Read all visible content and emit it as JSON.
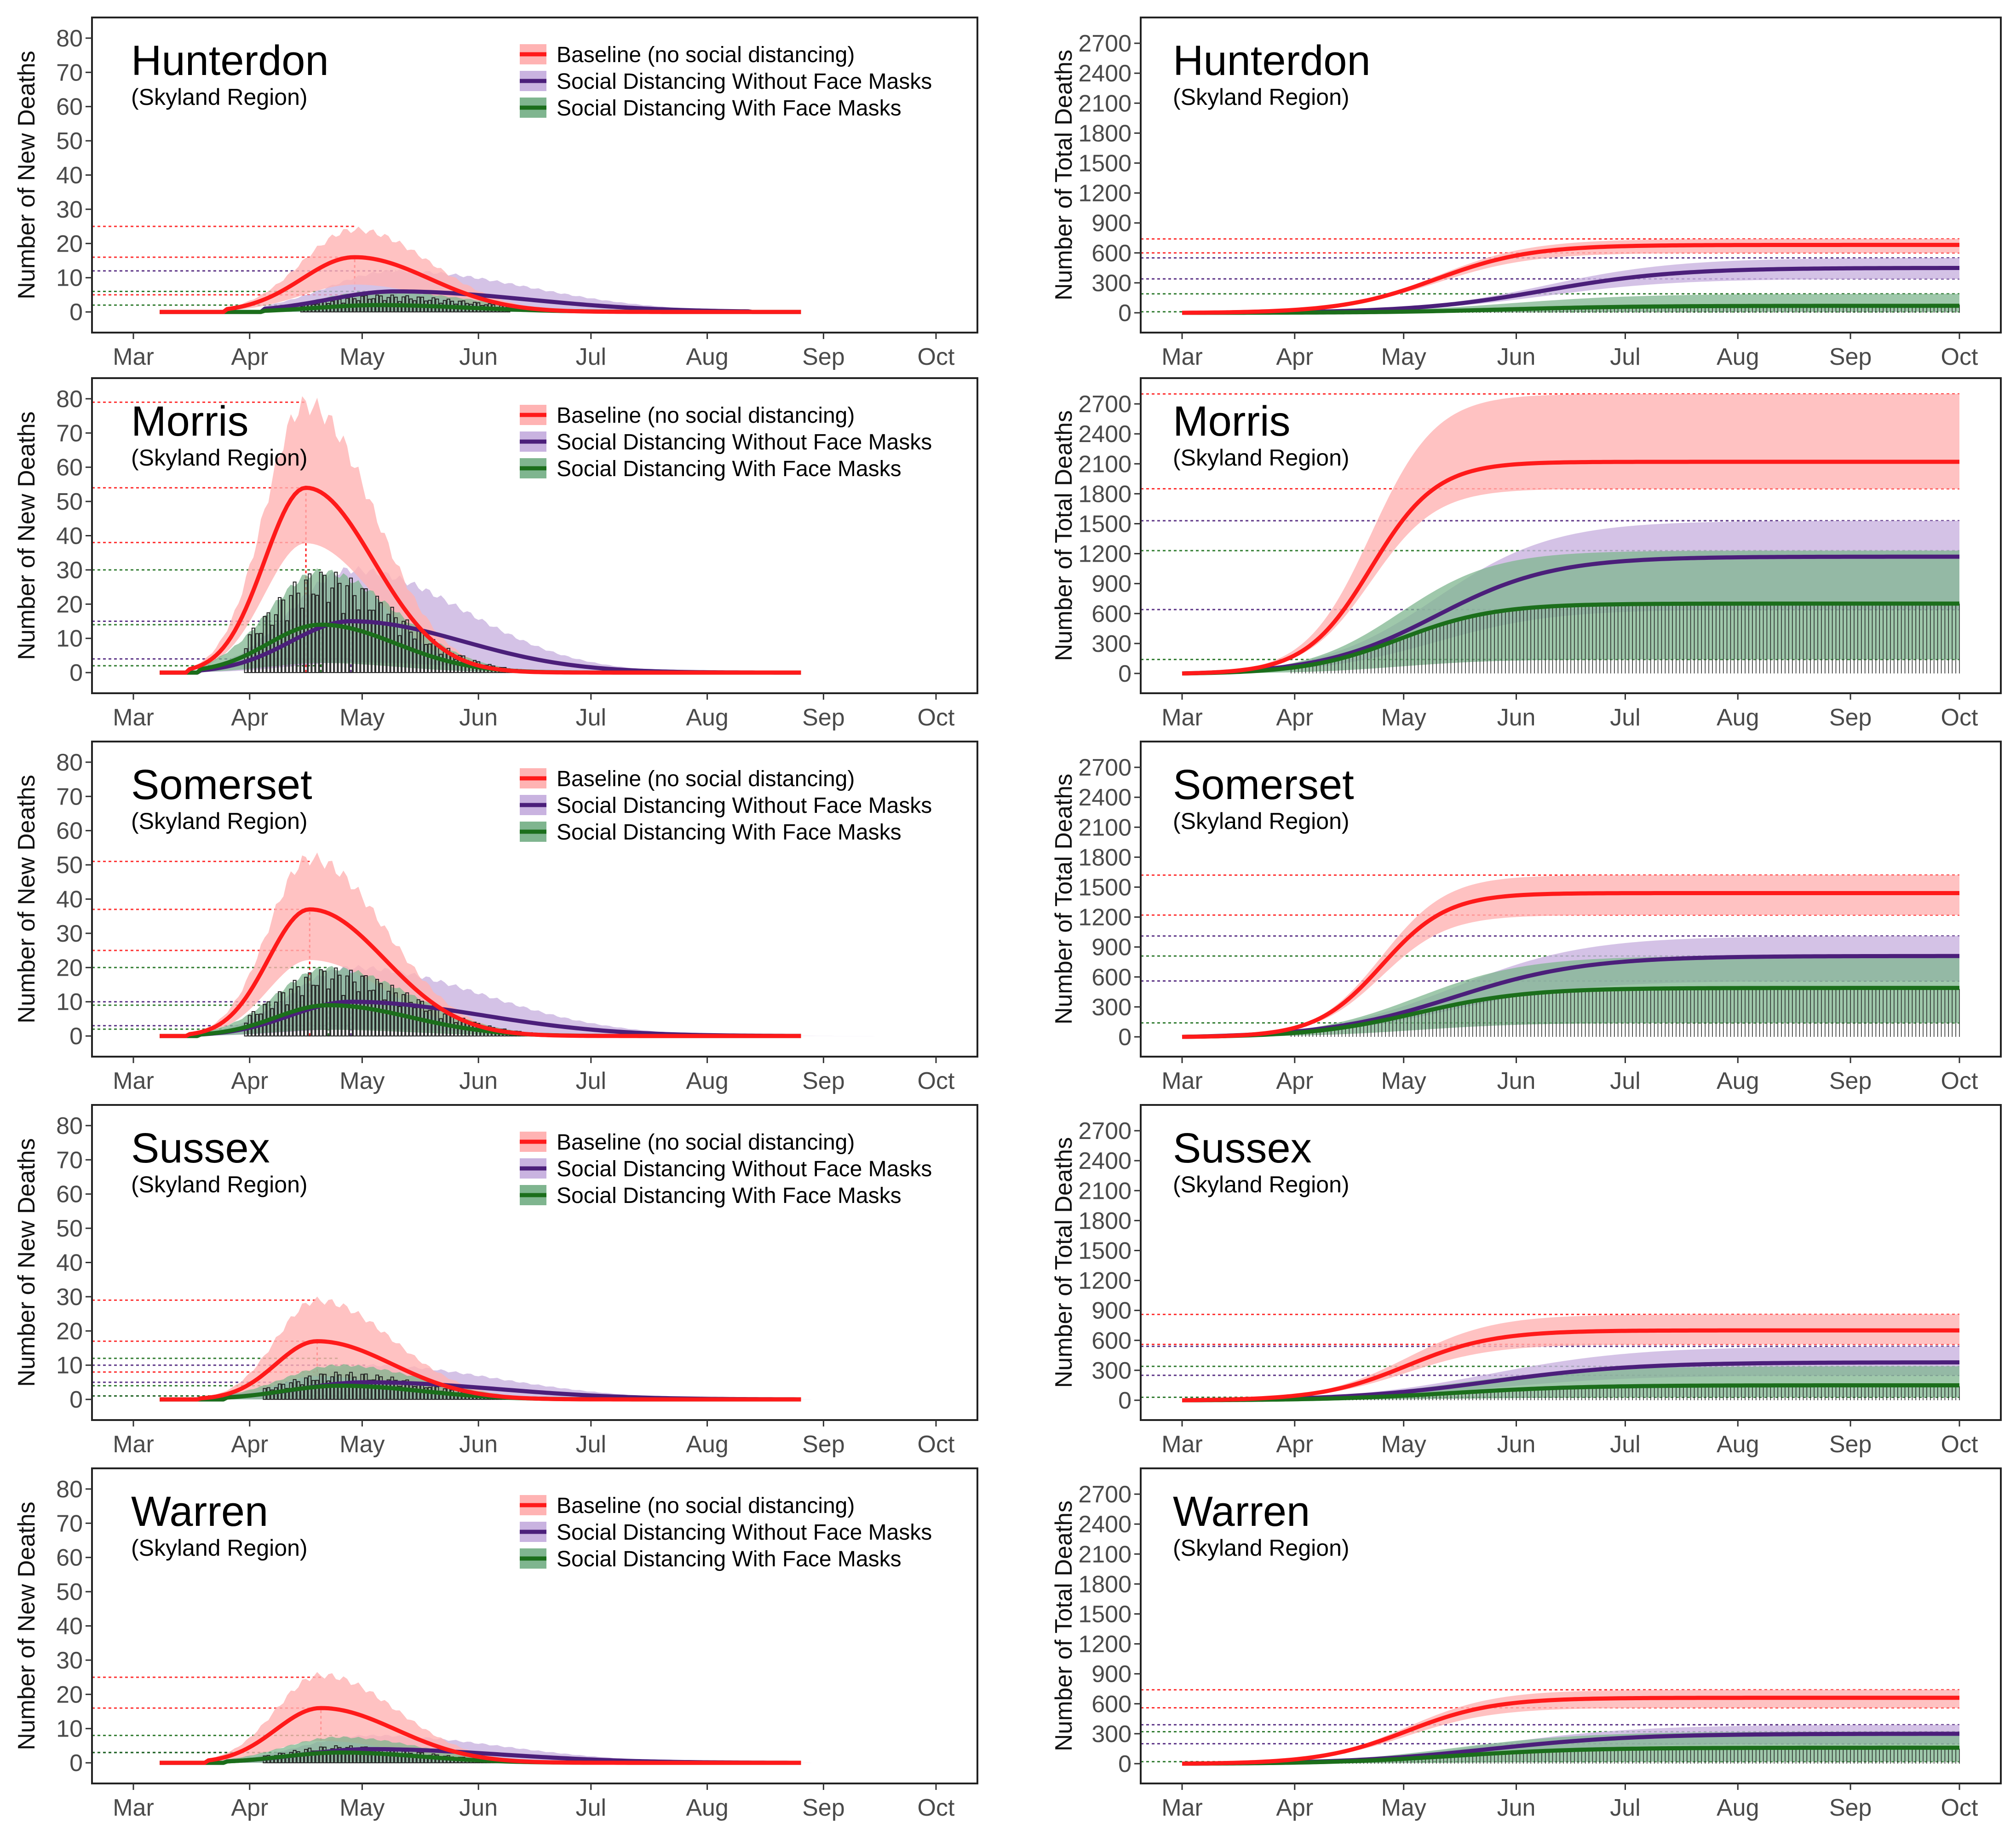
{
  "colors": {
    "baseline": "#ff1a1a",
    "baseline_band": "#ffb3b3",
    "no_masks": "#4b1f7a",
    "no_masks_band": "#c9b3e0",
    "masks": "#1b6e1b",
    "masks_band": "#7fb58f",
    "observed": "#222222"
  },
  "legend": {
    "baseline": "Baseline (no social distancing)",
    "no_masks": "Social Distancing Without Face Masks",
    "masks": "Social Distancing With Face Masks"
  },
  "region_label": "(Skyland Region)",
  "chart_data": [
    {
      "id": "hunterdon-new",
      "type": "line",
      "county": "Hunterdon",
      "title": "Hunterdon",
      "subtitle": "(Skyland Region)",
      "xlabel": "",
      "ylabel": "Number of New Deaths",
      "xlim": [
        0,
        214
      ],
      "ylim": [
        -2,
        82
      ],
      "yticks": [
        0,
        10,
        20,
        30,
        40,
        50,
        60,
        70,
        80
      ],
      "xticks": [
        "Mar",
        "Apr",
        "May",
        "Jun",
        "Jul",
        "Aug",
        "Sep",
        "Oct"
      ],
      "xtick_days": [
        0,
        31,
        61,
        92,
        122,
        153,
        184,
        214
      ],
      "legend": true,
      "series": [
        {
          "name": "Baseline (no social distancing)",
          "key": "baseline",
          "peak": 16,
          "peak_day": 59,
          "width_up": 14,
          "width_down": 20,
          "start": 25,
          "end": 150,
          "upper_mult": 1.5,
          "lower_mult": 0.5,
          "hline": [
            25,
            16,
            5
          ]
        },
        {
          "name": "Social Distancing Without Face Masks",
          "key": "no_masks",
          "peak": 6,
          "peak_day": 70,
          "width_up": 18,
          "width_down": 35,
          "start": 35,
          "end": 164,
          "upper_mult": 2.0,
          "lower_mult": 0.0,
          "hline": [
            12
          ]
        },
        {
          "name": "Social Distancing With Face Masks",
          "key": "masks",
          "peak": 2,
          "peak_day": 65,
          "width_up": 16,
          "width_down": 25,
          "start": 35,
          "end": 140,
          "upper_mult": 3.0,
          "lower_mult": 0.0,
          "hline": [
            6,
            2
          ]
        }
      ],
      "observed": {
        "max": 5,
        "start": 45,
        "end": 100
      }
    },
    {
      "id": "hunterdon-total",
      "type": "line",
      "county": "Hunterdon",
      "title": "Hunterdon",
      "subtitle": "(Skyland Region)",
      "xlabel": "",
      "ylabel": "Number of Total Deaths",
      "xlim": [
        0,
        214
      ],
      "ylim": [
        -60,
        2820
      ],
      "yticks": [
        0,
        300,
        600,
        900,
        1200,
        1500,
        1800,
        2100,
        2400,
        2700
      ],
      "xticks": [
        "Mar",
        "Apr",
        "May",
        "Jun",
        "Jul",
        "Aug",
        "Sep",
        "Oct"
      ],
      "xtick_days": [
        0,
        31,
        61,
        92,
        122,
        153,
        184,
        214
      ],
      "legend": false,
      "series": [
        {
          "name": "Baseline (no social distancing)",
          "key": "baseline",
          "final": 680,
          "mid": 70,
          "rate": 13,
          "upper": 740,
          "lower": 600,
          "hline": [
            740,
            600
          ]
        },
        {
          "name": "Social Distancing Without Face Masks",
          "key": "no_masks",
          "final": 450,
          "mid": 100,
          "rate": 18,
          "upper": 550,
          "lower": 340,
          "hline": [
            550,
            340
          ]
        },
        {
          "name": "Social Distancing With Face Masks",
          "key": "masks",
          "final": 70,
          "mid": 90,
          "rate": 18,
          "upper": 190,
          "lower": 10,
          "hline": [
            190,
            10
          ]
        }
      ],
      "observed": {
        "max": 80,
        "start": 45,
        "end": 214
      }
    },
    {
      "id": "morris-new",
      "type": "line",
      "county": "Morris",
      "title": "Morris",
      "subtitle": "(Skyland Region)",
      "xlabel": "",
      "ylabel": "Number of New Deaths",
      "xlim": [
        0,
        214
      ],
      "ylim": [
        -2,
        82
      ],
      "yticks": [
        0,
        10,
        20,
        30,
        40,
        50,
        60,
        70,
        80
      ],
      "xticks": [
        "Mar",
        "Apr",
        "May",
        "Jun",
        "Jul",
        "Aug",
        "Sep",
        "Oct"
      ],
      "xtick_days": [
        0,
        31,
        61,
        92,
        122,
        153,
        184,
        214
      ],
      "legend": true,
      "series": [
        {
          "name": "Baseline (no social distancing)",
          "key": "baseline",
          "peak": 54,
          "peak_day": 46,
          "width_up": 11,
          "width_down": 18,
          "start": 15,
          "end": 130,
          "upper_mult": 1.45,
          "lower_mult": 0.7,
          "hline": [
            79,
            54,
            38
          ]
        },
        {
          "name": "Social Distancing Without Face Masks",
          "key": "no_masks",
          "peak": 15,
          "peak_day": 58,
          "width_up": 16,
          "width_down": 30,
          "start": 18,
          "end": 170,
          "upper_mult": 2.0,
          "lower_mult": 0.2,
          "hline": [
            15,
            4
          ]
        },
        {
          "name": "Social Distancing With Face Masks",
          "key": "masks",
          "peak": 14,
          "peak_day": 50,
          "width_up": 14,
          "width_down": 20,
          "start": 18,
          "end": 130,
          "upper_mult": 2.1,
          "lower_mult": 0.2,
          "hline": [
            30,
            14,
            2
          ]
        }
      ],
      "observed": {
        "max": 30,
        "start": 30,
        "end": 140
      }
    },
    {
      "id": "morris-total",
      "type": "line",
      "county": "Morris",
      "title": "Morris",
      "subtitle": "(Skyland Region)",
      "xlabel": "",
      "ylabel": "Number of Total Deaths",
      "xlim": [
        0,
        214
      ],
      "ylim": [
        -60,
        2820
      ],
      "yticks": [
        0,
        300,
        600,
        900,
        1200,
        1500,
        1800,
        2100,
        2400,
        2700
      ],
      "xticks": [
        "Mar",
        "Apr",
        "May",
        "Jun",
        "Jul",
        "Aug",
        "Sep",
        "Oct"
      ],
      "xtick_days": [
        0,
        31,
        61,
        92,
        122,
        153,
        184,
        214
      ],
      "legend": false,
      "series": [
        {
          "name": "Baseline (no social distancing)",
          "key": "baseline",
          "final": 2120,
          "mid": 52,
          "rate": 9,
          "upper": 2800,
          "lower": 1850,
          "hline": [
            2800,
            1850
          ]
        },
        {
          "name": "Social Distancing Without Face Masks",
          "key": "no_masks",
          "final": 1170,
          "mid": 70,
          "rate": 16,
          "upper": 1530,
          "lower": 640,
          "hline": [
            1530,
            640
          ]
        },
        {
          "name": "Social Distancing With Face Masks",
          "key": "masks",
          "final": 700,
          "mid": 60,
          "rate": 13,
          "upper": 1230,
          "lower": 140,
          "hline": [
            1230,
            140
          ]
        }
      ],
      "observed": {
        "max": 700,
        "start": 30,
        "end": 214
      }
    },
    {
      "id": "somerset-new",
      "type": "line",
      "county": "Somerset",
      "title": "Somerset",
      "subtitle": "(Skyland Region)",
      "xlabel": "",
      "ylabel": "Number of New Deaths",
      "xlim": [
        0,
        214
      ],
      "ylim": [
        -2,
        82
      ],
      "yticks": [
        0,
        10,
        20,
        30,
        40,
        50,
        60,
        70,
        80
      ],
      "xticks": [
        "Mar",
        "Apr",
        "May",
        "Jun",
        "Jul",
        "Aug",
        "Sep",
        "Oct"
      ],
      "xtick_days": [
        0,
        31,
        61,
        92,
        122,
        153,
        184,
        214
      ],
      "legend": true,
      "series": [
        {
          "name": "Baseline (no social distancing)",
          "key": "baseline",
          "peak": 37,
          "peak_day": 47,
          "width_up": 11,
          "width_down": 20,
          "start": 15,
          "end": 140,
          "upper_mult": 1.4,
          "lower_mult": 0.6,
          "hline": [
            51,
            37,
            25
          ]
        },
        {
          "name": "Social Distancing Without Face Masks",
          "key": "no_masks",
          "peak": 10,
          "peak_day": 58,
          "width_up": 16,
          "width_down": 35,
          "start": 18,
          "end": 200,
          "upper_mult": 2.0,
          "lower_mult": 0.2,
          "hline": [
            10,
            3
          ]
        },
        {
          "name": "Social Distancing With Face Masks",
          "key": "masks",
          "peak": 9,
          "peak_day": 52,
          "width_up": 14,
          "width_down": 22,
          "start": 18,
          "end": 140,
          "upper_mult": 2.2,
          "lower_mult": 0.2,
          "hline": [
            20,
            9,
            2
          ]
        }
      ],
      "observed": {
        "max": 20,
        "start": 30,
        "end": 205
      }
    },
    {
      "id": "somerset-total",
      "type": "line",
      "county": "Somerset",
      "title": "Somerset",
      "subtitle": "(Skyland Region)",
      "xlabel": "",
      "ylabel": "Number of Total Deaths",
      "xlim": [
        0,
        214
      ],
      "ylim": [
        -60,
        2820
      ],
      "yticks": [
        0,
        300,
        600,
        900,
        1200,
        1500,
        1800,
        2100,
        2400,
        2700
      ],
      "xticks": [
        "Mar",
        "Apr",
        "May",
        "Jun",
        "Jul",
        "Aug",
        "Sep",
        "Oct"
      ],
      "xtick_days": [
        0,
        31,
        61,
        92,
        122,
        153,
        184,
        214
      ],
      "legend": false,
      "series": [
        {
          "name": "Baseline (no social distancing)",
          "key": "baseline",
          "final": 1440,
          "mid": 55,
          "rate": 9,
          "upper": 1620,
          "lower": 1220,
          "hline": [
            1620,
            1220
          ]
        },
        {
          "name": "Social Distancing Without Face Masks",
          "key": "no_masks",
          "final": 810,
          "mid": 75,
          "rate": 18,
          "upper": 1010,
          "lower": 560,
          "hline": [
            1010,
            560
          ]
        },
        {
          "name": "Social Distancing With Face Masks",
          "key": "masks",
          "final": 490,
          "mid": 65,
          "rate": 15,
          "upper": 810,
          "lower": 140,
          "hline": [
            810,
            140
          ]
        }
      ],
      "observed": {
        "max": 480,
        "start": 30,
        "end": 214
      }
    },
    {
      "id": "sussex-new",
      "type": "line",
      "county": "Sussex",
      "title": "Sussex",
      "subtitle": "(Skyland Region)",
      "xlabel": "",
      "ylabel": "Number of New Deaths",
      "xlim": [
        0,
        214
      ],
      "ylim": [
        -2,
        82
      ],
      "yticks": [
        0,
        10,
        20,
        30,
        40,
        50,
        60,
        70,
        80
      ],
      "xticks": [
        "Mar",
        "Apr",
        "May",
        "Jun",
        "Jul",
        "Aug",
        "Sep",
        "Oct"
      ],
      "xtick_days": [
        0,
        31,
        61,
        92,
        122,
        153,
        184,
        214
      ],
      "legend": true,
      "series": [
        {
          "name": "Baseline (no social distancing)",
          "key": "baseline",
          "peak": 17,
          "peak_day": 49,
          "width_up": 11,
          "width_down": 20,
          "start": 18,
          "end": 140,
          "upper_mult": 1.7,
          "lower_mult": 0.4,
          "hline": [
            29,
            17,
            8
          ]
        },
        {
          "name": "Social Distancing Without Face Masks",
          "key": "no_masks",
          "peak": 5,
          "peak_day": 62,
          "width_up": 18,
          "width_down": 35,
          "start": 25,
          "end": 180,
          "upper_mult": 2.0,
          "lower_mult": 0.0,
          "hline": [
            10,
            5,
            1
          ]
        },
        {
          "name": "Social Distancing With Face Masks",
          "key": "masks",
          "peak": 4,
          "peak_day": 55,
          "width_up": 15,
          "width_down": 22,
          "start": 25,
          "end": 140,
          "upper_mult": 2.5,
          "lower_mult": 0.0,
          "hline": [
            12,
            4,
            1
          ]
        }
      ],
      "observed": {
        "max": 8,
        "start": 35,
        "end": 110
      }
    },
    {
      "id": "sussex-total",
      "type": "line",
      "county": "Sussex",
      "title": "Sussex",
      "subtitle": "(Skyland Region)",
      "xlabel": "",
      "ylabel": "Number of Total Deaths",
      "xlim": [
        0,
        214
      ],
      "ylim": [
        -60,
        2820
      ],
      "yticks": [
        0,
        300,
        600,
        900,
        1200,
        1500,
        1800,
        2100,
        2400,
        2700
      ],
      "xticks": [
        "Mar",
        "Apr",
        "May",
        "Jun",
        "Jul",
        "Aug",
        "Sep",
        "Oct"
      ],
      "xtick_days": [
        0,
        31,
        61,
        92,
        122,
        153,
        184,
        214
      ],
      "legend": false,
      "series": [
        {
          "name": "Baseline (no social distancing)",
          "key": "baseline",
          "final": 700,
          "mid": 62,
          "rate": 12,
          "upper": 860,
          "lower": 560,
          "hline": [
            860,
            560
          ]
        },
        {
          "name": "Social Distancing Without Face Masks",
          "key": "no_masks",
          "final": 380,
          "mid": 85,
          "rate": 20,
          "upper": 540,
          "lower": 250,
          "hline": [
            540,
            250
          ]
        },
        {
          "name": "Social Distancing With Face Masks",
          "key": "masks",
          "final": 150,
          "mid": 75,
          "rate": 18,
          "upper": 340,
          "lower": 30,
          "hline": [
            340,
            30
          ]
        }
      ],
      "observed": {
        "max": 140,
        "start": 35,
        "end": 214
      }
    },
    {
      "id": "warren-new",
      "type": "line",
      "county": "Warren",
      "title": "Warren",
      "subtitle": "(Skyland Region)",
      "xlabel": "",
      "ylabel": "Number of New Deaths",
      "xlim": [
        0,
        214
      ],
      "ylim": [
        -2,
        82
      ],
      "yticks": [
        0,
        10,
        20,
        30,
        40,
        50,
        60,
        70,
        80
      ],
      "xticks": [
        "Mar",
        "Apr",
        "May",
        "Jun",
        "Jul",
        "Aug",
        "Sep",
        "Oct"
      ],
      "xtick_days": [
        0,
        31,
        61,
        92,
        122,
        153,
        184,
        214
      ],
      "legend": true,
      "series": [
        {
          "name": "Baseline (no social distancing)",
          "key": "baseline",
          "peak": 16,
          "peak_day": 50,
          "width_up": 12,
          "width_down": 20,
          "start": 20,
          "end": 140,
          "upper_mult": 1.6,
          "lower_mult": 0.4,
          "hline": [
            25,
            16
          ]
        },
        {
          "name": "Social Distancing Without Face Masks",
          "key": "no_masks",
          "peak": 4,
          "peak_day": 63,
          "width_up": 18,
          "width_down": 35,
          "start": 25,
          "end": 180,
          "upper_mult": 2.0,
          "lower_mult": 0.0,
          "hline": [
            3
          ]
        },
        {
          "name": "Social Distancing With Face Masks",
          "key": "masks",
          "peak": 3,
          "peak_day": 55,
          "width_up": 15,
          "width_down": 22,
          "start": 25,
          "end": 140,
          "upper_mult": 2.5,
          "lower_mult": 0.0,
          "hline": [
            8,
            3
          ]
        }
      ],
      "observed": {
        "max": 5,
        "start": 35,
        "end": 150
      }
    },
    {
      "id": "warren-total",
      "type": "line",
      "county": "Warren",
      "title": "Warren",
      "subtitle": "(Skyland Region)",
      "xlabel": "",
      "ylabel": "Number of Total Deaths",
      "xlim": [
        0,
        214
      ],
      "ylim": [
        -60,
        2820
      ],
      "yticks": [
        0,
        300,
        600,
        900,
        1200,
        1500,
        1800,
        2100,
        2400,
        2700
      ],
      "xticks": [
        "Mar",
        "Apr",
        "May",
        "Jun",
        "Jul",
        "Aug",
        "Sep",
        "Oct"
      ],
      "xtick_days": [
        0,
        31,
        61,
        92,
        122,
        153,
        184,
        214
      ],
      "legend": false,
      "series": [
        {
          "name": "Baseline (no social distancing)",
          "key": "baseline",
          "final": 660,
          "mid": 62,
          "rate": 12,
          "upper": 740,
          "lower": 560,
          "hline": [
            740,
            560
          ]
        },
        {
          "name": "Social Distancing Without Face Masks",
          "key": "no_masks",
          "final": 300,
          "mid": 85,
          "rate": 20,
          "upper": 390,
          "lower": 200,
          "hline": [
            390,
            200
          ]
        },
        {
          "name": "Social Distancing With Face Masks",
          "key": "masks",
          "final": 160,
          "mid": 75,
          "rate": 18,
          "upper": 320,
          "lower": 20,
          "hline": [
            320,
            20
          ]
        }
      ],
      "observed": {
        "max": 150,
        "start": 35,
        "end": 214
      }
    }
  ]
}
